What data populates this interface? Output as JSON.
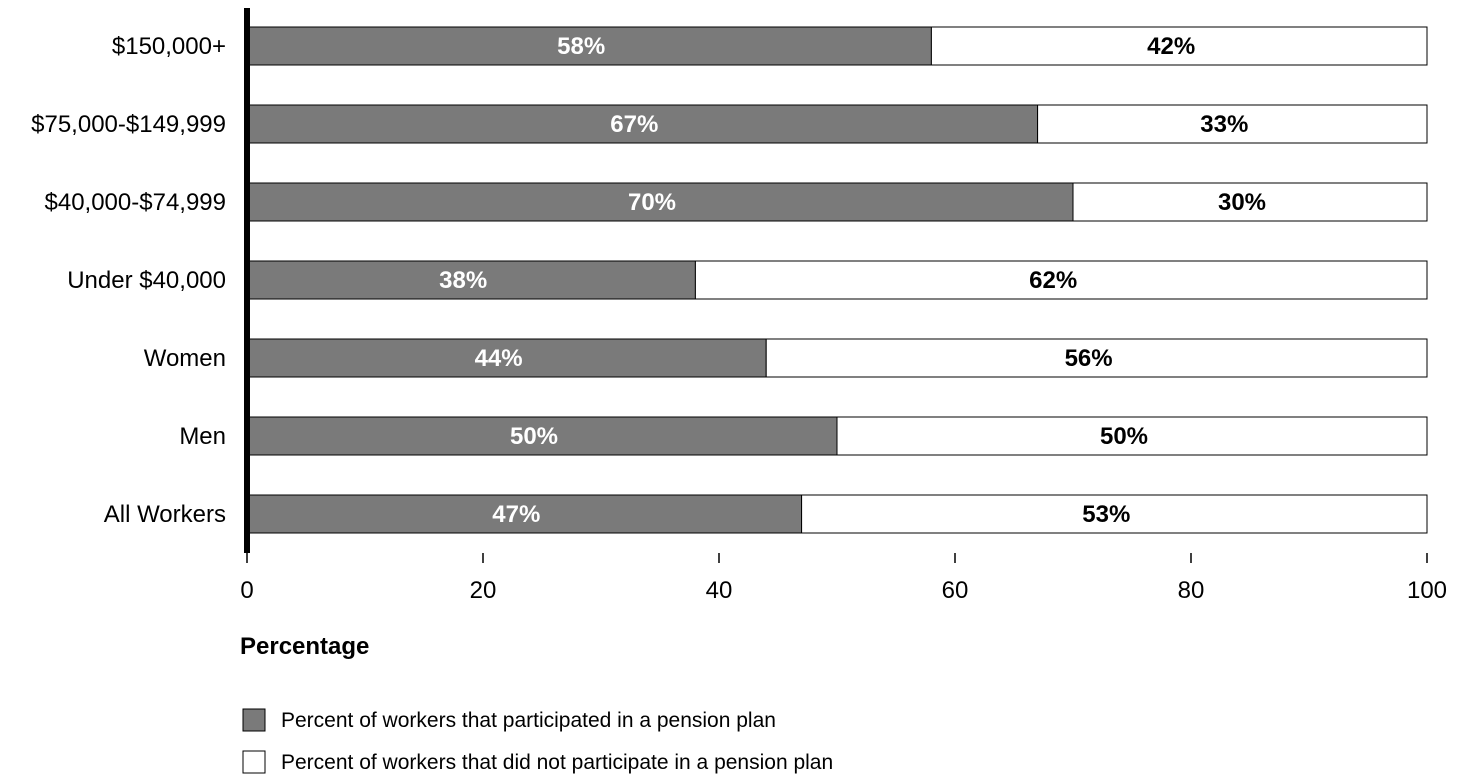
{
  "chart_data": {
    "type": "bar",
    "orientation": "horizontal",
    "stacked": true,
    "categories": [
      "$150,000+",
      "$75,000-$149,999",
      "$40,000-$74,999",
      "Under $40,000",
      "Women",
      "Men",
      "All Workers"
    ],
    "series": [
      {
        "name": "Percent of workers that participated in a pension plan",
        "color": "#7a7a7a",
        "values": [
          58,
          67,
          70,
          38,
          44,
          50,
          47
        ],
        "labels": [
          "58%",
          "67%",
          "70%",
          "38%",
          "44%",
          "50%",
          "47%"
        ]
      },
      {
        "name": "Percent of workers that did not participate in a pension plan",
        "color": "#ffffff",
        "values": [
          42,
          33,
          30,
          62,
          56,
          50,
          53
        ],
        "labels": [
          "42%",
          "33%",
          "30%",
          "62%",
          "56%",
          "50%",
          "53%"
        ]
      }
    ],
    "xlabel": "Percentage",
    "ylabel": "",
    "xlim": [
      0,
      100
    ],
    "xticks": [
      0,
      20,
      40,
      60,
      80,
      100
    ],
    "grid": false,
    "legend_position": "bottom"
  }
}
